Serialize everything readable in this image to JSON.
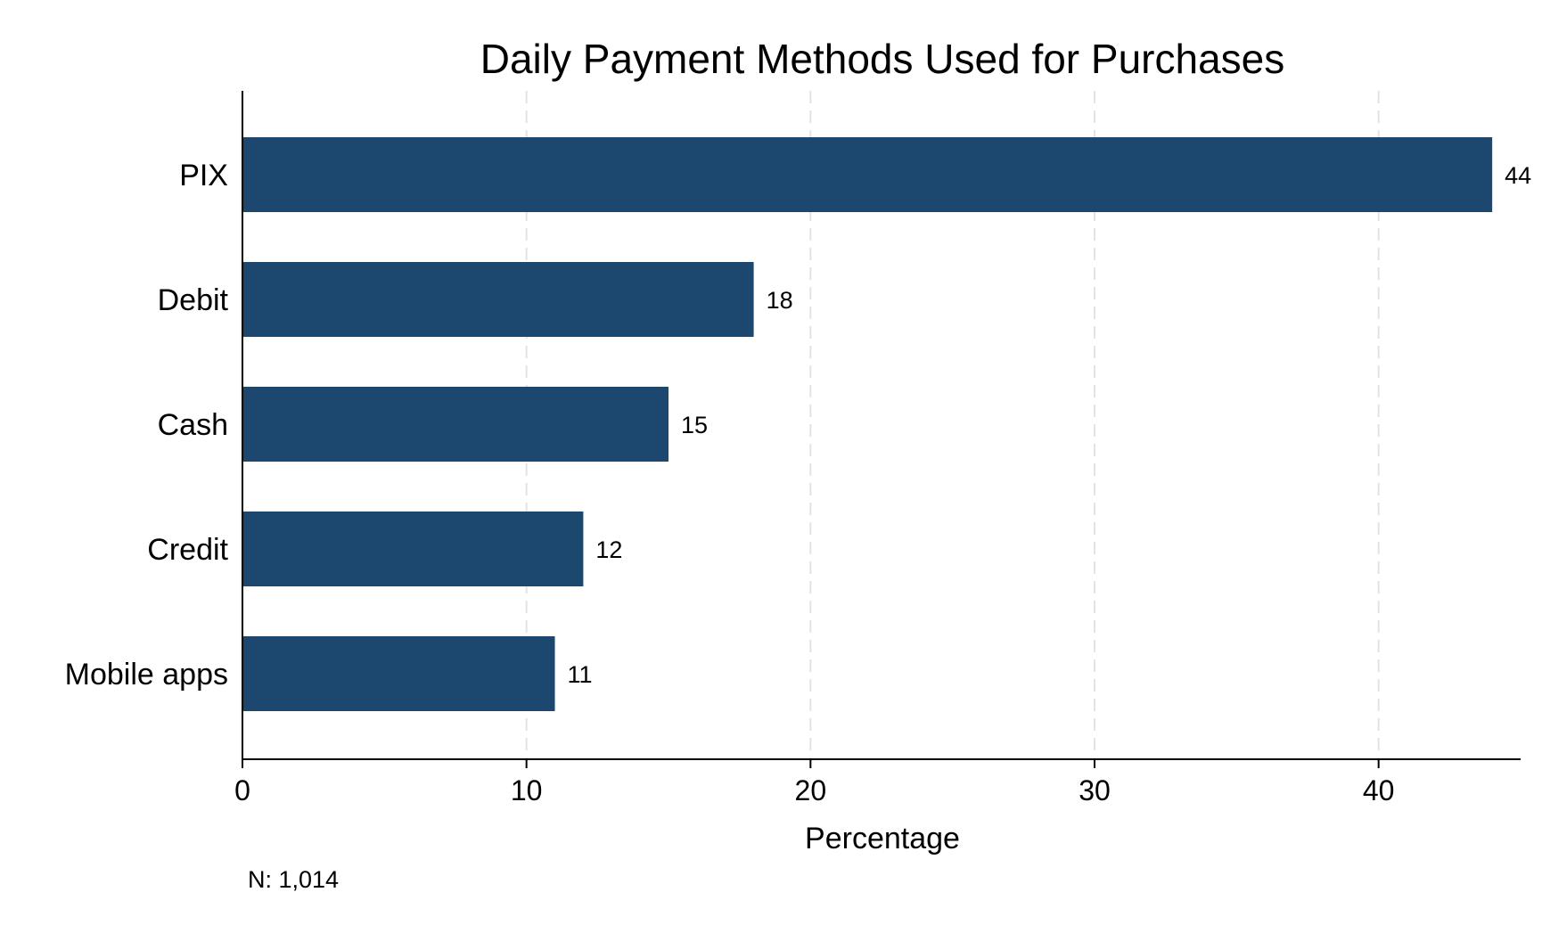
{
  "chart_data": {
    "type": "bar",
    "orientation": "horizontal",
    "title": "Daily Payment Methods Used for Purchases",
    "xlabel": "Percentage",
    "ylabel": "",
    "categories": [
      "PIX",
      "Debit",
      "Cash",
      "Credit",
      "Mobile apps"
    ],
    "values": [
      44,
      18,
      15,
      12,
      11
    ],
    "value_labels": [
      "44",
      "18",
      "15",
      "12",
      "11"
    ],
    "xlim": [
      0,
      45
    ],
    "xticks": [
      0,
      10,
      20,
      30,
      40
    ],
    "xtick_labels": [
      "0",
      "10",
      "20",
      "30",
      "40"
    ],
    "grid": "vertical dashed",
    "bar_color": "#1c4870",
    "note": "N: 1,014"
  }
}
